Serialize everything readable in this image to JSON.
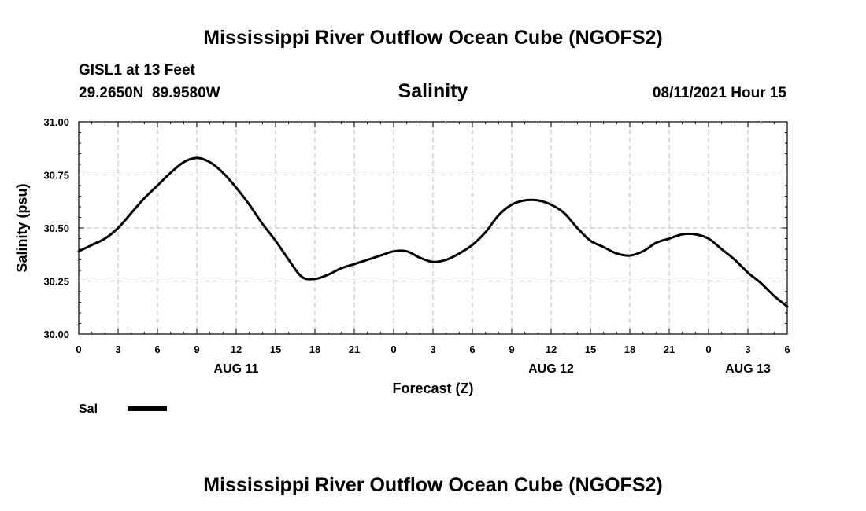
{
  "header": {
    "title": "Mississippi River Outflow Ocean Cube (NGOFS2)",
    "station": "GISL1 at 13 Feet",
    "coords": "29.2650N  89.9580W",
    "variable": "Salinity",
    "datetime": "08/11/2021 Hour 15"
  },
  "footer": {
    "title": "Mississippi River Outflow Ocean Cube (NGOFS2)"
  },
  "legend": {
    "label": "Sal"
  },
  "colors": {
    "line": "#000000",
    "grid": "#bbbbbb",
    "background": "#ffffff"
  },
  "chart_data": {
    "type": "line",
    "title": "Salinity",
    "xlabel": "Forecast (Z)",
    "ylabel": "Salinity (psu)",
    "xlim": [
      0,
      54
    ],
    "ylim": [
      30.0,
      31.0
    ],
    "grid": true,
    "legend_position": "bottom-left",
    "x_ticks": [
      0,
      3,
      6,
      9,
      12,
      15,
      18,
      21,
      24,
      27,
      30,
      33,
      36,
      39,
      42,
      45,
      48,
      51,
      54
    ],
    "x_tick_labels": [
      "0",
      "3",
      "6",
      "9",
      "12",
      "15",
      "18",
      "21",
      "0",
      "3",
      "6",
      "9",
      "12",
      "15",
      "18",
      "21",
      "0",
      "3",
      "6"
    ],
    "y_ticks": [
      30.0,
      30.25,
      30.5,
      30.75,
      31.0
    ],
    "y_tick_labels": [
      "30.00",
      "30.25",
      "30.50",
      "30.75",
      "31.00"
    ],
    "date_labels": [
      {
        "x": 12,
        "label": "AUG 11"
      },
      {
        "x": 36,
        "label": "AUG 12"
      },
      {
        "x": 51,
        "label": "AUG 13"
      }
    ],
    "series": [
      {
        "name": "Sal",
        "x": [
          0,
          1,
          2,
          3,
          4,
          5,
          6,
          7,
          8,
          9,
          10,
          11,
          12,
          13,
          14,
          15,
          16,
          17,
          18,
          19,
          20,
          21,
          22,
          23,
          24,
          25,
          26,
          27,
          28,
          29,
          30,
          31,
          32,
          33,
          34,
          35,
          36,
          37,
          38,
          39,
          40,
          41,
          42,
          43,
          44,
          45,
          46,
          47,
          48,
          49,
          50,
          51,
          52,
          53,
          54
        ],
        "values": [
          30.39,
          30.42,
          30.45,
          30.5,
          30.57,
          30.64,
          30.7,
          30.76,
          30.81,
          30.83,
          30.81,
          30.76,
          30.69,
          30.61,
          30.52,
          30.44,
          30.35,
          30.27,
          30.26,
          30.28,
          30.31,
          30.33,
          30.35,
          30.37,
          30.39,
          30.39,
          30.36,
          30.34,
          30.35,
          30.38,
          30.42,
          30.48,
          30.56,
          30.61,
          30.63,
          30.63,
          30.61,
          30.57,
          30.5,
          30.44,
          30.41,
          30.38,
          30.37,
          30.39,
          30.43,
          30.45,
          30.47,
          30.47,
          30.45,
          30.4,
          30.35,
          30.29,
          30.24,
          30.18,
          30.13
        ]
      }
    ]
  }
}
